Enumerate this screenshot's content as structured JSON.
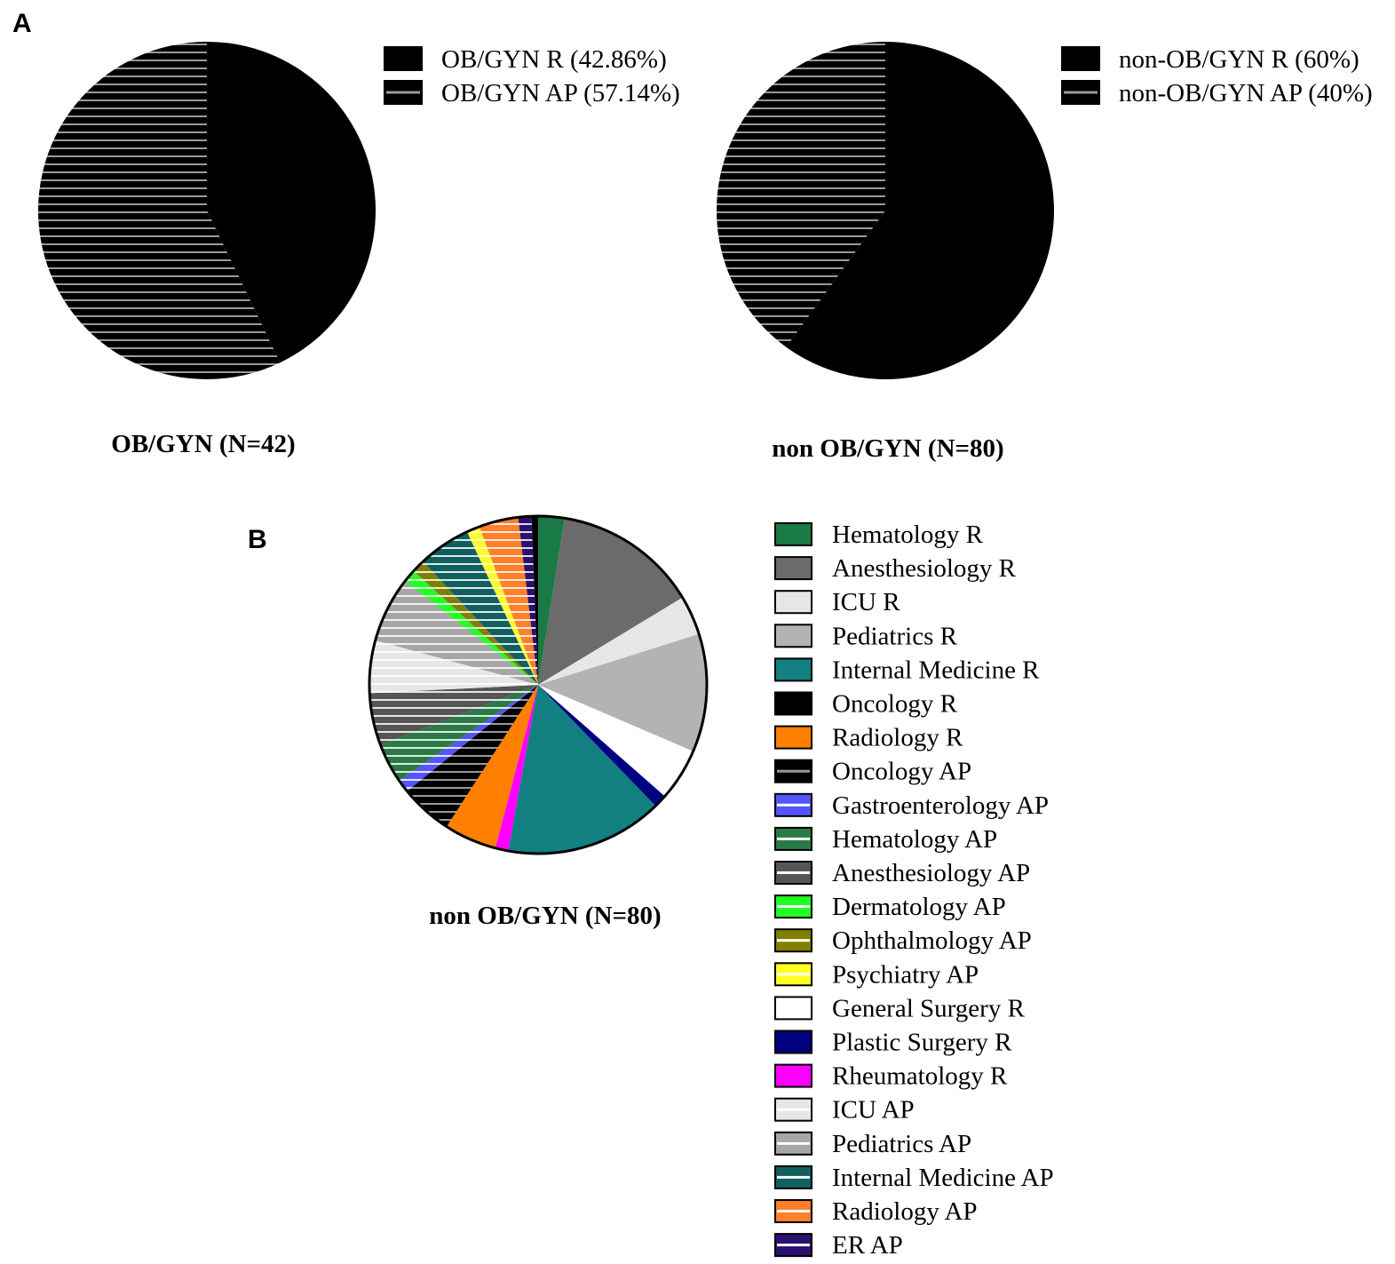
{
  "panels": {
    "a_label": "A",
    "b_label": "B"
  },
  "chart_data": [
    {
      "type": "pie",
      "title": "OB/GYN (N=42)",
      "slices": [
        {
          "label": "OB/GYN R (42.86%)",
          "value": 42.86,
          "color": "#000000",
          "pattern": "solid"
        },
        {
          "label": "OB/GYN AP (57.14%)",
          "value": 57.14,
          "color": "#000000",
          "pattern": "striped"
        }
      ],
      "legend_position": "top-right"
    },
    {
      "type": "pie",
      "title": "non OB/GYN (N=80)",
      "slices": [
        {
          "label": "non-OB/GYN R (60%)",
          "value": 60,
          "color": "#000000",
          "pattern": "solid"
        },
        {
          "label": "non-OB/GYN AP (40%)",
          "value": 40,
          "color": "#000000",
          "pattern": "striped"
        }
      ],
      "legend_position": "top-right"
    },
    {
      "type": "pie",
      "title": "non OB/GYN (N=80)",
      "slices": [
        {
          "label": "Hematology R",
          "value": 2,
          "color": "#1a7a45",
          "pattern": "solid"
        },
        {
          "label": "Anesthesiology R",
          "value": 11,
          "color": "#6b6b6b",
          "pattern": "solid"
        },
        {
          "label": "ICU R",
          "value": 3,
          "color": "#e6e6e6",
          "pattern": "solid"
        },
        {
          "label": "Pediatrics R",
          "value": 9,
          "color": "#b3b3b3",
          "pattern": "solid"
        },
        {
          "label": "Internal Medicine R",
          "value": 0,
          "color": "#128080",
          "pattern": "solid"
        },
        {
          "label": "Oncology R",
          "value": 0,
          "color": "#000000",
          "pattern": "solid"
        },
        {
          "label": "Radiology R",
          "value": 0,
          "color": "#ff7f00",
          "pattern": "solid"
        },
        {
          "label": "General Surgery R",
          "value": 4,
          "color": "#ffffff",
          "pattern": "solid"
        },
        {
          "label": "Plastic Surgery R",
          "value": 1,
          "color": "#000080",
          "pattern": "solid"
        },
        {
          "label": "Internal Medicine R",
          "value": 12,
          "color": "#128080",
          "pattern": "solid"
        },
        {
          "label": "Rheumatology R",
          "value": 1,
          "color": "#ff00ff",
          "pattern": "solid"
        },
        {
          "label": "Radiology R",
          "value": 4,
          "color": "#ff7f00",
          "pattern": "solid"
        },
        {
          "label": "Oncology AP",
          "value": 4,
          "color": "#000000",
          "pattern": "striped"
        },
        {
          "label": "Gastroenterology AP",
          "value": 1,
          "color": "#5555ff",
          "pattern": "striped"
        },
        {
          "label": "Hematology AP",
          "value": 3,
          "color": "#2a7a45",
          "pattern": "striped"
        },
        {
          "label": "Anesthesiology AP",
          "value": 4,
          "color": "#555555",
          "pattern": "striped"
        },
        {
          "label": "ICU AP",
          "value": 4,
          "color": "#e6e6e6",
          "pattern": "striped"
        },
        {
          "label": "Pediatrics AP",
          "value": 5,
          "color": "#a6a6a6",
          "pattern": "striped"
        },
        {
          "label": "Dermatology AP",
          "value": 1,
          "color": "#22ff22",
          "pattern": "striped"
        },
        {
          "label": "Ophthalmology AP",
          "value": 1,
          "color": "#808000",
          "pattern": "striped"
        },
        {
          "label": "Internal Medicine AP",
          "value": 4,
          "color": "#116060",
          "pattern": "striped"
        },
        {
          "label": "Psychiatry AP",
          "value": 1,
          "color": "#ffff22",
          "pattern": "striped"
        },
        {
          "label": "Radiology AP",
          "value": 3,
          "color": "#ff7f2a",
          "pattern": "striped"
        },
        {
          "label": "ER AP",
          "value": 1,
          "color": "#2a1070",
          "pattern": "striped"
        },
        {
          "label": "Oncology R",
          "value": 0.5,
          "color": "#000000",
          "pattern": "solid"
        }
      ],
      "legend": [
        {
          "label": "Hematology R",
          "color": "#1a7a45",
          "pattern": "solid"
        },
        {
          "label": "Anesthesiology R",
          "color": "#6b6b6b",
          "pattern": "solid"
        },
        {
          "label": "ICU R",
          "color": "#e6e6e6",
          "pattern": "solid"
        },
        {
          "label": "Pediatrics R",
          "color": "#b3b3b3",
          "pattern": "solid"
        },
        {
          "label": "Internal Medicine R",
          "color": "#128080",
          "pattern": "solid"
        },
        {
          "label": "Oncology R",
          "color": "#000000",
          "pattern": "solid"
        },
        {
          "label": "Radiology R",
          "color": "#ff7f00",
          "pattern": "solid"
        },
        {
          "label": "Oncology AP",
          "color": "#000000",
          "pattern": "striped"
        },
        {
          "label": "Gastroenterology AP",
          "color": "#5555ff",
          "pattern": "striped"
        },
        {
          "label": "Hematology AP",
          "color": "#2a7a45",
          "pattern": "striped"
        },
        {
          "label": "Anesthesiology AP",
          "color": "#555555",
          "pattern": "striped"
        },
        {
          "label": "Dermatology AP",
          "color": "#22ff22",
          "pattern": "striped"
        },
        {
          "label": "Ophthalmology AP",
          "color": "#808000",
          "pattern": "striped"
        },
        {
          "label": "Psychiatry AP",
          "color": "#ffff22",
          "pattern": "striped"
        },
        {
          "label": "General Surgery R",
          "color": "#ffffff",
          "pattern": "solid"
        },
        {
          "label": "Plastic Surgery R",
          "color": "#000080",
          "pattern": "solid"
        },
        {
          "label": "Rheumatology R",
          "color": "#ff00ff",
          "pattern": "solid"
        },
        {
          "label": "ICU AP",
          "color": "#e6e6e6",
          "pattern": "striped"
        },
        {
          "label": "Pediatrics AP",
          "color": "#a6a6a6",
          "pattern": "striped"
        },
        {
          "label": "Internal Medicine AP",
          "color": "#116060",
          "pattern": "striped"
        },
        {
          "label": "Radiology AP",
          "color": "#ff7f2a",
          "pattern": "striped"
        },
        {
          "label": "ER AP",
          "color": "#2a1070",
          "pattern": "striped"
        }
      ],
      "legend_position": "right"
    }
  ]
}
